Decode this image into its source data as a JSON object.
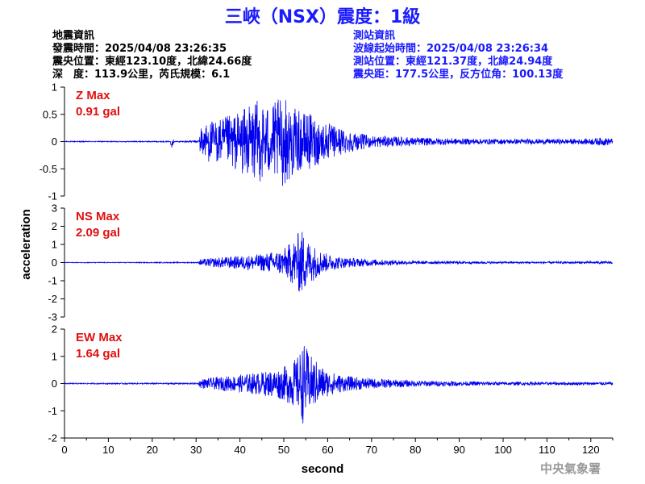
{
  "page": {
    "title": "三峽（NSX）震度：1級",
    "credit": "中央氣象署"
  },
  "event_info": {
    "heading": "地震資訊",
    "origin_time": "發震時間：2025/04/08 23:26:35",
    "epicenter": "震央位置：東經123.10度，北緯24.66度",
    "depth_magnitude": "深　度：113.9公里，芮氏規模：6.1"
  },
  "station_info": {
    "heading": "測站資訊",
    "wave_start": "波線起始時間：2025/04/08 23:26:34",
    "location": "測站位置：東經121.37度，北緯24.94度",
    "distance_azimuth": "震央距：177.5公里，反方位角：100.13度"
  },
  "colors": {
    "trace": "#0000ee",
    "title": "#1a1aff",
    "max_label": "#e01010",
    "credit": "#9a9a9a"
  },
  "chart_data": {
    "type": "line",
    "xlabel": "second",
    "ylabel": "acceleration",
    "xlim": [
      0,
      125
    ],
    "xticks": [
      0,
      10,
      20,
      30,
      40,
      50,
      60,
      70,
      80,
      90,
      100,
      110,
      120
    ],
    "panels": [
      {
        "component": "Z",
        "max_label": "Z Max",
        "max_value": "0.91 gal",
        "ylim": [
          -1,
          1
        ],
        "yticks": [
          -1,
          -0.5,
          0,
          0.5,
          1
        ],
        "ytick_labels": [
          "-1",
          "-0.5",
          "0",
          "0.5",
          "1"
        ],
        "envelope": {
          "t": [
            0,
            24,
            24.5,
            25,
            30.5,
            31,
            33,
            36,
            40,
            44,
            47,
            50,
            53,
            56,
            59,
            62,
            66,
            70,
            80,
            90,
            100,
            110,
            118,
            123,
            125
          ],
          "a": [
            0.01,
            0.01,
            0.12,
            0.01,
            0.02,
            0.28,
            0.4,
            0.45,
            0.6,
            0.8,
            0.72,
            0.88,
            0.6,
            0.55,
            0.4,
            0.3,
            0.18,
            0.12,
            0.08,
            0.06,
            0.05,
            0.05,
            0.05,
            0.08,
            0.06
          ]
        }
      },
      {
        "component": "NS",
        "max_label": "NS Max",
        "max_value": "2.09 gal",
        "ylim": [
          -3,
          3
        ],
        "yticks": [
          -3,
          -2,
          -1,
          0,
          1,
          2,
          3
        ],
        "ytick_labels": [
          "-3",
          "-2",
          "-1",
          "0",
          "1",
          "2",
          "3"
        ],
        "envelope": {
          "t": [
            0,
            30.5,
            31,
            35,
            40,
            45,
            50,
            52,
            54,
            56,
            58,
            60,
            64,
            70,
            80,
            90,
            100,
            110,
            125
          ],
          "a": [
            0.02,
            0.03,
            0.2,
            0.3,
            0.4,
            0.5,
            0.8,
            1.3,
            2.0,
            1.2,
            0.8,
            0.5,
            0.3,
            0.2,
            0.1,
            0.08,
            0.06,
            0.06,
            0.08
          ]
        }
      },
      {
        "component": "EW",
        "max_label": "EW Max",
        "max_value": "1.64 gal",
        "ylim": [
          -2,
          2
        ],
        "yticks": [
          -2,
          -1,
          0,
          1,
          2
        ],
        "ytick_labels": [
          "-2",
          "-1",
          "0",
          "1",
          "2"
        ],
        "envelope": {
          "t": [
            0,
            30.5,
            31,
            35,
            40,
            45,
            50,
            53,
            54.5,
            56,
            58,
            60,
            64,
            70,
            80,
            90,
            100,
            110,
            125
          ],
          "a": [
            0.02,
            0.03,
            0.18,
            0.25,
            0.35,
            0.45,
            0.65,
            1.0,
            1.6,
            1.1,
            0.8,
            0.5,
            0.3,
            0.2,
            0.12,
            0.09,
            0.07,
            0.06,
            0.06
          ]
        }
      }
    ]
  }
}
